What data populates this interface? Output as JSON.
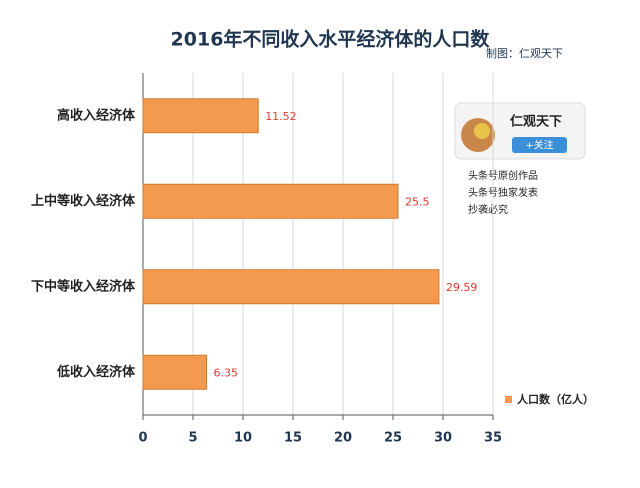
{
  "chart_data": {
    "type": "bar",
    "orientation": "horizontal",
    "title": "2016年不同收入水平经济体的人口数",
    "subtitle": "制图：仁观天下",
    "categories": [
      "高收入经济体",
      "上中等收入经济体",
      "下中等收入经济体",
      "低收入经济体"
    ],
    "series": [
      {
        "name": "人口数（亿人）",
        "color": "#f39a4e",
        "values": [
          11.52,
          25.5,
          29.59,
          6.35
        ]
      }
    ],
    "xlim": [
      0,
      35
    ],
    "xticks": [
      0,
      5,
      10,
      15,
      20,
      25,
      30,
      35
    ],
    "grid": true,
    "legend_position": "lower right",
    "value_label_color": "#e03a2f",
    "annotations": {
      "account": "仁观天下",
      "follow_button": "+关注",
      "notes": [
        "头条号原创作品",
        "头条号独家发表",
        "抄袭必究"
      ]
    }
  }
}
